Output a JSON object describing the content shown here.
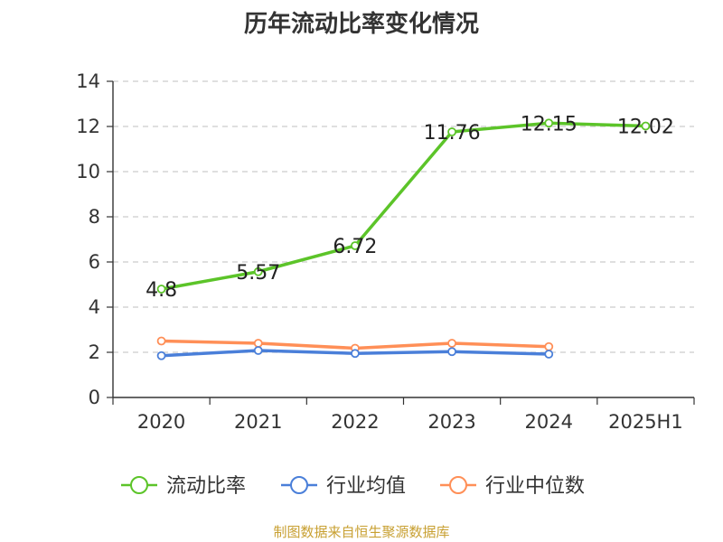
{
  "chart_data": {
    "type": "line",
    "title": "历年流动比率变化情况",
    "xlabel": "",
    "ylabel": "",
    "categories": [
      "2020",
      "2021",
      "2022",
      "2023",
      "2024",
      "2025H1"
    ],
    "ylim": [
      0,
      14
    ],
    "yticks": [
      0,
      2,
      4,
      6,
      8,
      10,
      12,
      14
    ],
    "grid": true,
    "legend_position": "bottom",
    "series": [
      {
        "name": "流动比率",
        "color": "#5cc429",
        "values": [
          4.8,
          5.57,
          6.72,
          11.76,
          12.15,
          12.02
        ],
        "labels": [
          "4.8",
          "5.57",
          "6.72",
          "11.76",
          "12.15",
          "12.02"
        ]
      },
      {
        "name": "行业均值",
        "color": "#4a7fd9",
        "values": [
          1.85,
          2.08,
          1.95,
          2.03,
          1.92,
          null
        ]
      },
      {
        "name": "行业中位数",
        "color": "#ff8f57",
        "values": [
          2.5,
          2.4,
          2.18,
          2.4,
          2.25,
          null
        ]
      }
    ]
  },
  "footer": {
    "credit": "制图数据来自恒生聚源数据库"
  }
}
